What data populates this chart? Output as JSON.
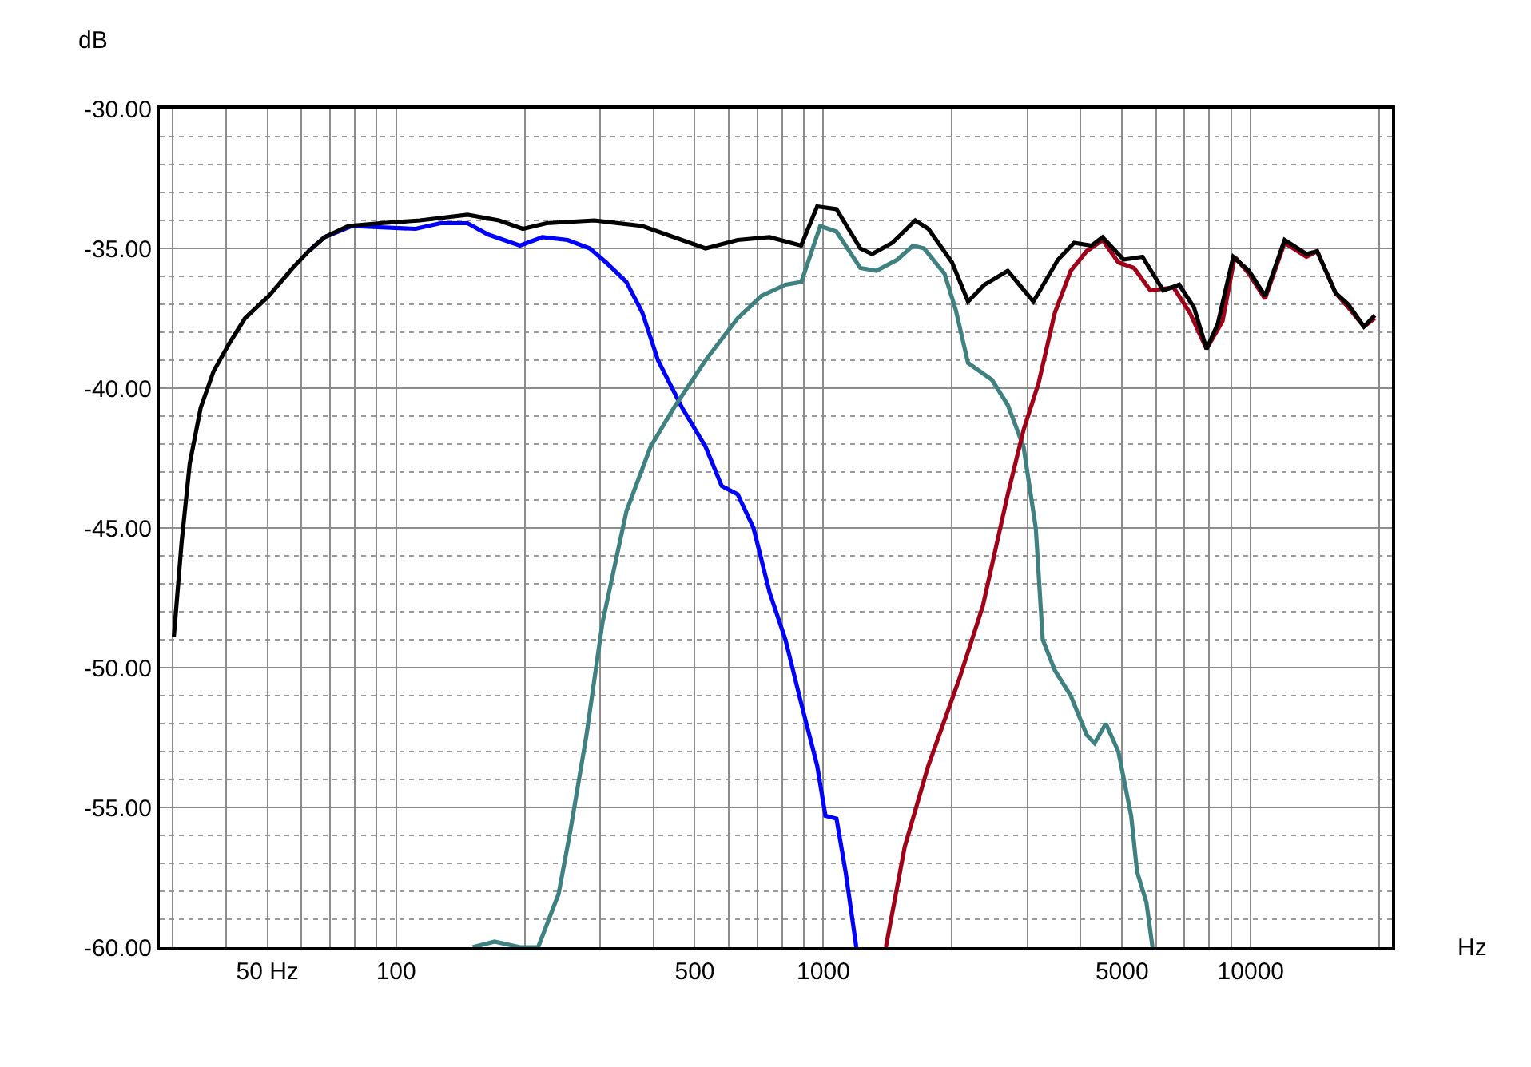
{
  "chart_data": {
    "type": "line",
    "xlabel": "Hz",
    "ylabel": "dB",
    "log": "x",
    "grid": true,
    "marker": "none",
    "line_style": "solid",
    "xlim": [
      28,
      21400
    ],
    "ylim": [
      -60,
      -30
    ],
    "xticks": [
      {
        "value": 30,
        "label": null
      },
      {
        "value": 40,
        "label": null
      },
      {
        "value": 50,
        "label": "50 Hz"
      },
      {
        "value": 60,
        "label": null
      },
      {
        "value": 70,
        "label": null
      },
      {
        "value": 80,
        "label": null
      },
      {
        "value": 90,
        "label": null
      },
      100,
      {
        "value": 200,
        "label": null
      },
      {
        "value": 300,
        "label": null
      },
      {
        "value": 400,
        "label": null
      },
      500,
      {
        "value": 600,
        "label": null
      },
      {
        "value": 700,
        "label": null
      },
      {
        "value": 800,
        "label": null
      },
      {
        "value": 900,
        "label": null
      },
      1000,
      {
        "value": 2000,
        "label": null
      },
      {
        "value": 3000,
        "label": null
      },
      {
        "value": 4000,
        "label": null
      },
      5000,
      {
        "value": 6000,
        "label": null
      },
      {
        "value": 7000,
        "label": null
      },
      {
        "value": 8000,
        "label": null
      },
      {
        "value": 9000,
        "label": null
      },
      10000,
      {
        "value": 20000,
        "label": null
      }
    ],
    "yticks": [
      {
        "value": -60,
        "label": "-60.00"
      },
      {
        "value": -59,
        "label": null
      },
      {
        "value": -58,
        "label": null
      },
      {
        "value": -57,
        "label": null
      },
      {
        "value": -56,
        "label": null
      },
      {
        "value": -55,
        "label": "-55.00"
      },
      {
        "value": -54,
        "label": null
      },
      {
        "value": -53,
        "label": null
      },
      {
        "value": -52,
        "label": null
      },
      {
        "value": -51,
        "label": null
      },
      {
        "value": -50,
        "label": "-50.00"
      },
      {
        "value": -49,
        "label": null
      },
      {
        "value": -48,
        "label": null
      },
      {
        "value": -47,
        "label": null
      },
      {
        "value": -46,
        "label": null
      },
      {
        "value": -45,
        "label": "-45.00"
      },
      {
        "value": -44,
        "label": null
      },
      {
        "value": -43,
        "label": null
      },
      {
        "value": -42,
        "label": null
      },
      {
        "value": -41,
        "label": null
      },
      {
        "value": -40,
        "label": "-40.00"
      },
      {
        "value": -39,
        "label": null
      },
      {
        "value": -38,
        "label": null
      },
      {
        "value": -37,
        "label": null
      },
      {
        "value": -36,
        "label": null
      },
      {
        "value": -35,
        "label": "-35.00"
      },
      {
        "value": -34,
        "label": null
      },
      {
        "value": -33,
        "label": null
      },
      {
        "value": -32,
        "label": null
      },
      {
        "value": -31,
        "label": null
      },
      {
        "value": -30,
        "label": "-30.00"
      }
    ],
    "series": [
      {
        "color": "#0000ff",
        "x": [
          62.4,
          68,
          78.7,
          111,
          127,
          147,
          164,
          195,
          220,
          252,
          284,
          310,
          346,
          377,
          410,
          467,
          530,
          578,
          630,
          686,
          748,
          815,
          888,
          967,
          1011,
          1073,
          1127,
          1194
        ],
        "values": [
          -35.1,
          -34.6,
          -34.2,
          -34.3,
          -34.1,
          -34.1,
          -34.5,
          -34.9,
          -34.6,
          -34.7,
          -35.0,
          -35.5,
          -36.2,
          -37.3,
          -39.0,
          -40.7,
          -42.1,
          -43.5,
          -43.8,
          -45.0,
          -47.3,
          -49.0,
          -51.3,
          -53.5,
          -55.3,
          -55.4,
          -57.3,
          -60.0
        ]
      },
      {
        "color": "#3f8080",
        "x": [
          151,
          170,
          195,
          215,
          240,
          256,
          279,
          304,
          346,
          394,
          447,
          530,
          630,
          716,
          815,
          888,
          983,
          1073,
          1220,
          1330,
          1490,
          1620,
          1720,
          1920,
          2040,
          2180,
          2480,
          2700,
          2940,
          3140,
          3260,
          3480,
          3790,
          4130,
          4310,
          4580,
          4900,
          5250,
          5420,
          5700,
          5890
        ],
        "values": [
          -60.0,
          -59.8,
          -60.0,
          -60.0,
          -58.1,
          -55.8,
          -52.4,
          -48.4,
          -44.4,
          -42.1,
          -40.7,
          -39.0,
          -37.5,
          -36.7,
          -36.3,
          -36.2,
          -34.2,
          -34.4,
          -35.7,
          -35.8,
          -35.4,
          -34.9,
          -35.0,
          -35.9,
          -37.2,
          -39.1,
          -39.7,
          -40.6,
          -42.1,
          -45.0,
          -49.0,
          -50.1,
          -51.0,
          -52.4,
          -52.7,
          -52.0,
          -53.0,
          -55.3,
          -57.3,
          -58.4,
          -60.0
        ]
      },
      {
        "color": "#a00018",
        "x": [
          1400,
          1550,
          1760,
          2080,
          2360,
          2700,
          2940,
          3190,
          3480,
          3790,
          4130,
          4500,
          4900,
          5330,
          5820,
          6600,
          7200,
          7880,
          8590,
          9170,
          9900,
          10800,
          12000,
          13500,
          14300,
          15800,
          16900,
          18400,
          19500
        ],
        "values": [
          -60.0,
          -56.4,
          -53.5,
          -50.4,
          -47.8,
          -43.8,
          -41.5,
          -39.8,
          -37.3,
          -35.8,
          -35.1,
          -34.7,
          -35.5,
          -35.7,
          -36.5,
          -36.4,
          -37.3,
          -38.6,
          -37.6,
          -35.3,
          -35.9,
          -36.8,
          -34.8,
          -35.3,
          -35.1,
          -36.6,
          -37.1,
          -37.8,
          -37.5
        ]
      },
      {
        "color": "#000000",
        "x": [
          30.2,
          31.5,
          32.9,
          34.9,
          37.4,
          40.7,
          44.3,
          50.4,
          57.3,
          62.4,
          68,
          77.3,
          91.8,
          113.7,
          147,
          174,
          198,
          225,
          291,
          377,
          447,
          530,
          630,
          748,
          887,
          967,
          1073,
          1220,
          1300,
          1450,
          1640,
          1760,
          2000,
          2180,
          2380,
          2700,
          3100,
          3540,
          3860,
          4240,
          4500,
          5040,
          5580,
          6240,
          6800,
          7360,
          7880,
          8370,
          9100,
          9900,
          10800,
          12000,
          13500,
          14300,
          15800,
          16900,
          18400,
          19500
        ],
        "values": [
          -48.9,
          -45.5,
          -42.7,
          -40.7,
          -39.4,
          -38.4,
          -37.5,
          -36.7,
          -35.7,
          -35.1,
          -34.6,
          -34.2,
          -34.1,
          -34.0,
          -33.8,
          -34.0,
          -34.3,
          -34.1,
          -34.0,
          -34.2,
          -34.6,
          -35.0,
          -34.7,
          -34.6,
          -34.9,
          -33.5,
          -33.6,
          -35.0,
          -35.2,
          -34.8,
          -34.0,
          -34.3,
          -35.5,
          -36.9,
          -36.3,
          -35.8,
          -36.9,
          -35.4,
          -34.8,
          -34.9,
          -34.6,
          -35.4,
          -35.3,
          -36.5,
          -36.3,
          -37.1,
          -38.6,
          -37.7,
          -35.3,
          -35.8,
          -36.7,
          -34.7,
          -35.2,
          -35.1,
          -36.6,
          -37.0,
          -37.8,
          -37.4
        ]
      }
    ]
  }
}
